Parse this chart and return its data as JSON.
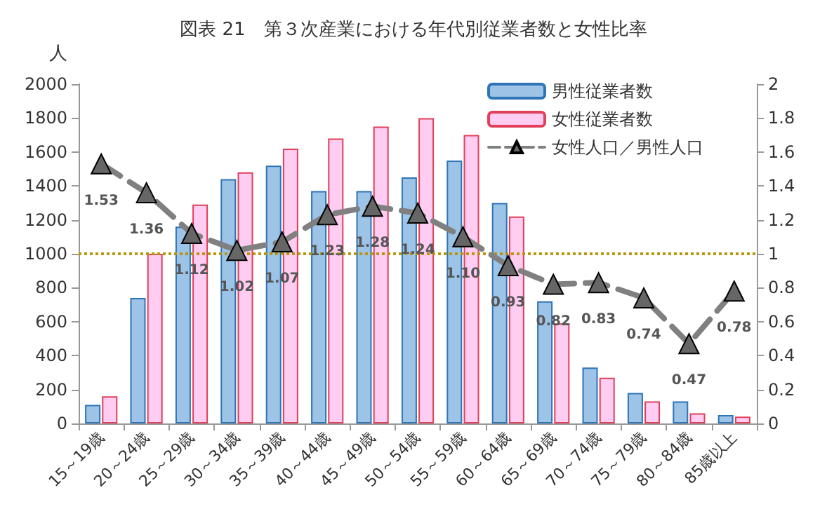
{
  "chart_data": {
    "type": "bar",
    "title": "図表 21　第３次産業における年代別従業者数と女性比率",
    "ylabel": "人",
    "categories": [
      "15～19歳",
      "20～24歳",
      "25～29歳",
      "30～34歳",
      "35～39歳",
      "40～44歳",
      "45～49歳",
      "50～54歳",
      "55～59歳",
      "60～64歳",
      "65～69歳",
      "70～74歳",
      "75～79歳",
      "80～84歳",
      "85歳以上"
    ],
    "series": [
      {
        "name": "男性従業者数",
        "color": "#9dc3e6",
        "values": [
          110,
          740,
          1160,
          1440,
          1520,
          1370,
          1370,
          1450,
          1550,
          1300,
          720,
          330,
          180,
          130,
          50
        ]
      },
      {
        "name": "女性従業者数",
        "color": "#ffccf2",
        "values": [
          160,
          1000,
          1290,
          1480,
          1620,
          1680,
          1750,
          1800,
          1700,
          1220,
          590,
          270,
          130,
          60,
          40
        ]
      },
      {
        "name": "女性人口／男性人口",
        "type": "line",
        "axis": "y2",
        "color": "#808080",
        "marker": "triangle",
        "line_style": "dashed",
        "data_labels": true,
        "values": [
          1.53,
          1.36,
          1.12,
          1.02,
          1.07,
          1.23,
          1.28,
          1.24,
          1.1,
          0.93,
          0.82,
          0.83,
          0.74,
          0.47,
          0.78
        ],
        "value_labels": [
          "1.53",
          "1.36",
          "1.12",
          "1.02",
          "1.07",
          "1.23",
          "1.28",
          "1.24",
          "1.10",
          "0.93",
          "0.82",
          "0.83",
          "0.74",
          "0.47",
          "0.78"
        ]
      }
    ],
    "ylim": [
      0,
      2000
    ],
    "yticks": [
      0,
      200,
      400,
      600,
      800,
      1000,
      1200,
      1400,
      1600,
      1800,
      2000
    ],
    "y2lim": [
      0,
      2
    ],
    "y2ticks": [
      0,
      0.2,
      0.4,
      0.6,
      0.8,
      1,
      1.2,
      1.4,
      1.6,
      1.8,
      2
    ],
    "ref_lines": [
      {
        "axis": "y2",
        "value": 1,
        "color": "#b8960a",
        "line_style": "dotted"
      }
    ],
    "grid": false,
    "legend": "top right"
  }
}
